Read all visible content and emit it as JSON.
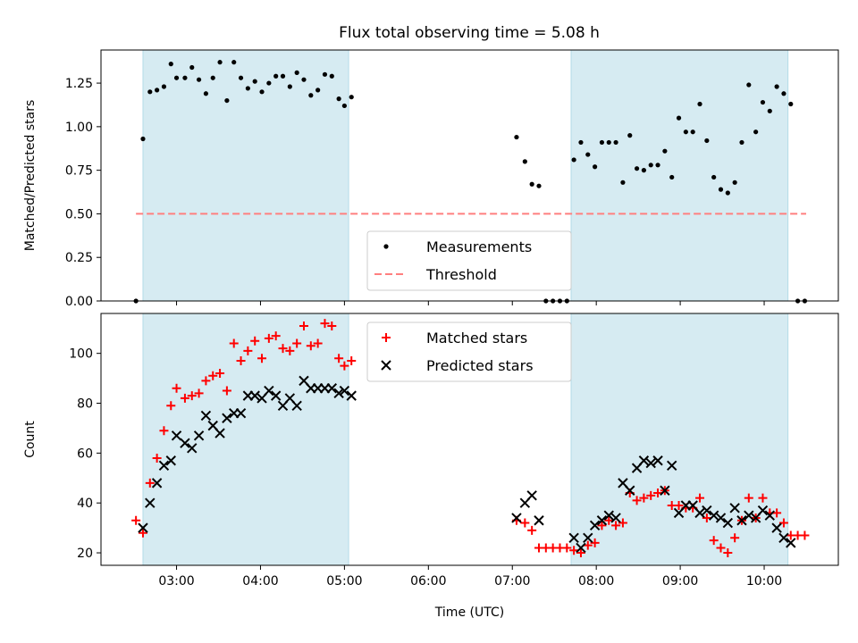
{
  "title": "Flux total observing time = 5.08 h",
  "colors": {
    "shade": "#add8e6",
    "threshold": "#ff7f7f",
    "matched": "#ff0000",
    "predicted": "#000000",
    "measure": "#000000"
  },
  "chart_data": [
    {
      "type": "scatter",
      "ylabel": "Matched/Predicted stars",
      "ylim": [
        0,
        1.44
      ],
      "yticks": [
        0,
        0.25,
        0.5,
        0.75,
        1.0,
        1.25
      ],
      "ytick_labels": [
        "0.00",
        "0.25",
        "0.50",
        "0.75",
        "1.00",
        "1.25"
      ],
      "xlim": [
        "02:06",
        "10:53"
      ],
      "xticks": [
        "03:00",
        "04:00",
        "05:00",
        "06:00",
        "07:00",
        "08:00",
        "09:00",
        "10:00"
      ],
      "xtick_labels_shown": false,
      "shaded_spans": [
        [
          "02:36",
          "05:03"
        ],
        [
          "07:42",
          "10:17"
        ]
      ],
      "threshold": {
        "y": 0.5,
        "x_range": [
          "02:31",
          "10:30"
        ]
      },
      "legend": {
        "entries": [
          "Measurements",
          "Threshold"
        ],
        "loc": "lower center"
      },
      "series": [
        {
          "name": "Measurements",
          "points": [
            [
              "02:31",
              0.0
            ],
            [
              "02:36",
              0.93
            ],
            [
              "02:41",
              1.2
            ],
            [
              "02:46",
              1.21
            ],
            [
              "02:51",
              1.23
            ],
            [
              "02:56",
              1.36
            ],
            [
              "03:00",
              1.28
            ],
            [
              "03:06",
              1.28
            ],
            [
              "03:11",
              1.34
            ],
            [
              "03:16",
              1.27
            ],
            [
              "03:21",
              1.19
            ],
            [
              "03:26",
              1.28
            ],
            [
              "03:31",
              1.37
            ],
            [
              "03:36",
              1.15
            ],
            [
              "03:41",
              1.37
            ],
            [
              "03:46",
              1.28
            ],
            [
              "03:51",
              1.22
            ],
            [
              "03:56",
              1.26
            ],
            [
              "04:01",
              1.2
            ],
            [
              "04:06",
              1.25
            ],
            [
              "04:11",
              1.29
            ],
            [
              "04:16",
              1.29
            ],
            [
              "04:21",
              1.23
            ],
            [
              "04:26",
              1.31
            ],
            [
              "04:31",
              1.27
            ],
            [
              "04:36",
              1.18
            ],
            [
              "04:41",
              1.21
            ],
            [
              "04:46",
              1.3
            ],
            [
              "04:51",
              1.29
            ],
            [
              "04:56",
              1.16
            ],
            [
              "05:00",
              1.12
            ],
            [
              "05:05",
              1.17
            ],
            [
              "07:03",
              0.94
            ],
            [
              "07:09",
              0.8
            ],
            [
              "07:14",
              0.67
            ],
            [
              "07:19",
              0.66
            ],
            [
              "07:24",
              0.0
            ],
            [
              "07:29",
              0.0
            ],
            [
              "07:34",
              0.0
            ],
            [
              "07:39",
              0.0
            ],
            [
              "07:44",
              0.81
            ],
            [
              "07:49",
              0.91
            ],
            [
              "07:54",
              0.84
            ],
            [
              "07:59",
              0.77
            ],
            [
              "08:04",
              0.91
            ],
            [
              "08:09",
              0.91
            ],
            [
              "08:14",
              0.91
            ],
            [
              "08:19",
              0.68
            ],
            [
              "08:24",
              0.95
            ],
            [
              "08:29",
              0.76
            ],
            [
              "08:34",
              0.75
            ],
            [
              "08:39",
              0.78
            ],
            [
              "08:44",
              0.78
            ],
            [
              "08:49",
              0.86
            ],
            [
              "08:54",
              0.71
            ],
            [
              "08:59",
              1.05
            ],
            [
              "09:04",
              0.97
            ],
            [
              "09:09",
              0.97
            ],
            [
              "09:14",
              1.13
            ],
            [
              "09:19",
              0.92
            ],
            [
              "09:24",
              0.71
            ],
            [
              "09:29",
              0.64
            ],
            [
              "09:34",
              0.62
            ],
            [
              "09:39",
              0.68
            ],
            [
              "09:44",
              0.91
            ],
            [
              "09:49",
              1.24
            ],
            [
              "09:54",
              0.97
            ],
            [
              "09:59",
              1.14
            ],
            [
              "10:04",
              1.09
            ],
            [
              "10:09",
              1.23
            ],
            [
              "10:14",
              1.19
            ],
            [
              "10:19",
              1.13
            ],
            [
              "10:24",
              0.0
            ],
            [
              "10:29",
              0.0
            ]
          ]
        }
      ]
    },
    {
      "type": "scatter",
      "xlabel": "Time (UTC)",
      "ylabel": "Count",
      "ylim": [
        15,
        116
      ],
      "yticks": [
        20,
        40,
        60,
        80,
        100
      ],
      "xlim": [
        "02:06",
        "10:53"
      ],
      "xticks": [
        "03:00",
        "04:00",
        "05:00",
        "06:00",
        "07:00",
        "08:00",
        "09:00",
        "10:00"
      ],
      "shaded_spans": [
        [
          "02:36",
          "05:03"
        ],
        [
          "07:42",
          "10:17"
        ]
      ],
      "legend": {
        "entries": [
          "Matched stars",
          "Predicted stars"
        ],
        "loc": "upper center"
      },
      "series": [
        {
          "name": "Matched stars",
          "marker": "+",
          "points": [
            [
              "02:31",
              33
            ],
            [
              "02:36",
              28
            ],
            [
              "02:41",
              48
            ],
            [
              "02:46",
              58
            ],
            [
              "02:51",
              69
            ],
            [
              "02:56",
              79
            ],
            [
              "03:00",
              86
            ],
            [
              "03:06",
              82
            ],
            [
              "03:11",
              83
            ],
            [
              "03:16",
              84
            ],
            [
              "03:21",
              89
            ],
            [
              "03:26",
              91
            ],
            [
              "03:31",
              92
            ],
            [
              "03:36",
              85
            ],
            [
              "03:41",
              104
            ],
            [
              "03:46",
              97
            ],
            [
              "03:51",
              101
            ],
            [
              "03:56",
              105
            ],
            [
              "04:01",
              98
            ],
            [
              "04:06",
              106
            ],
            [
              "04:11",
              107
            ],
            [
              "04:16",
              102
            ],
            [
              "04:21",
              101
            ],
            [
              "04:26",
              104
            ],
            [
              "04:31",
              111
            ],
            [
              "04:36",
              103
            ],
            [
              "04:41",
              104
            ],
            [
              "04:46",
              112
            ],
            [
              "04:51",
              111
            ],
            [
              "04:56",
              98
            ],
            [
              "05:00",
              95
            ],
            [
              "05:05",
              97
            ],
            [
              "07:03",
              33
            ],
            [
              "07:09",
              32
            ],
            [
              "07:14",
              29
            ],
            [
              "07:19",
              22
            ],
            [
              "07:24",
              22
            ],
            [
              "07:29",
              22
            ],
            [
              "07:34",
              22
            ],
            [
              "07:39",
              22
            ],
            [
              "07:44",
              21
            ],
            [
              "07:49",
              20
            ],
            [
              "07:54",
              23
            ],
            [
              "07:59",
              24
            ],
            [
              "08:04",
              31
            ],
            [
              "08:09",
              33
            ],
            [
              "08:14",
              31
            ],
            [
              "08:19",
              32
            ],
            [
              "08:24",
              44
            ],
            [
              "08:29",
              41
            ],
            [
              "08:34",
              42
            ],
            [
              "08:39",
              43
            ],
            [
              "08:44",
              44
            ],
            [
              "08:49",
              45
            ],
            [
              "08:54",
              39
            ],
            [
              "08:59",
              39
            ],
            [
              "09:04",
              38
            ],
            [
              "09:09",
              38
            ],
            [
              "09:14",
              42
            ],
            [
              "09:19",
              34
            ],
            [
              "09:24",
              25
            ],
            [
              "09:29",
              22
            ],
            [
              "09:34",
              20
            ],
            [
              "09:39",
              26
            ],
            [
              "09:44",
              33
            ],
            [
              "09:49",
              42
            ],
            [
              "09:54",
              34
            ],
            [
              "09:59",
              42
            ],
            [
              "10:04",
              36
            ],
            [
              "10:09",
              36
            ],
            [
              "10:14",
              32
            ],
            [
              "10:19",
              27
            ],
            [
              "10:24",
              27
            ],
            [
              "10:29",
              27
            ]
          ]
        },
        {
          "name": "Predicted stars",
          "marker": "x",
          "points": [
            [
              "02:36",
              30
            ],
            [
              "02:41",
              40
            ],
            [
              "02:46",
              48
            ],
            [
              "02:51",
              55
            ],
            [
              "02:56",
              57
            ],
            [
              "03:00",
              67
            ],
            [
              "03:06",
              64
            ],
            [
              "03:11",
              62
            ],
            [
              "03:16",
              67
            ],
            [
              "03:21",
              75
            ],
            [
              "03:26",
              71
            ],
            [
              "03:31",
              68
            ],
            [
              "03:36",
              74
            ],
            [
              "03:41",
              76
            ],
            [
              "03:46",
              76
            ],
            [
              "03:51",
              83
            ],
            [
              "03:56",
              83
            ],
            [
              "04:01",
              82
            ],
            [
              "04:06",
              85
            ],
            [
              "04:11",
              83
            ],
            [
              "04:16",
              79
            ],
            [
              "04:21",
              82
            ],
            [
              "04:26",
              79
            ],
            [
              "04:31",
              89
            ],
            [
              "04:36",
              86
            ],
            [
              "04:41",
              86
            ],
            [
              "04:46",
              86
            ],
            [
              "04:51",
              86
            ],
            [
              "04:56",
              84
            ],
            [
              "05:00",
              85
            ],
            [
              "05:05",
              83
            ],
            [
              "07:03",
              34
            ],
            [
              "07:09",
              40
            ],
            [
              "07:14",
              43
            ],
            [
              "07:19",
              33
            ],
            [
              "07:44",
              26
            ],
            [
              "07:49",
              22
            ],
            [
              "07:54",
              26
            ],
            [
              "07:59",
              31
            ],
            [
              "08:04",
              33
            ],
            [
              "08:09",
              35
            ],
            [
              "08:14",
              34
            ],
            [
              "08:19",
              48
            ],
            [
              "08:24",
              45
            ],
            [
              "08:29",
              54
            ],
            [
              "08:34",
              57
            ],
            [
              "08:39",
              56
            ],
            [
              "08:44",
              57
            ],
            [
              "08:49",
              45
            ],
            [
              "08:54",
              55
            ],
            [
              "08:59",
              36
            ],
            [
              "09:04",
              39
            ],
            [
              "09:09",
              39
            ],
            [
              "09:14",
              36
            ],
            [
              "09:19",
              37
            ],
            [
              "09:24",
              35
            ],
            [
              "09:29",
              34
            ],
            [
              "09:34",
              32
            ],
            [
              "09:39",
              38
            ],
            [
              "09:44",
              33
            ],
            [
              "09:49",
              35
            ],
            [
              "09:54",
              34
            ],
            [
              "09:59",
              37
            ],
            [
              "10:04",
              35
            ],
            [
              "10:09",
              30
            ],
            [
              "10:14",
              26
            ],
            [
              "10:19",
              24
            ]
          ]
        }
      ]
    }
  ]
}
